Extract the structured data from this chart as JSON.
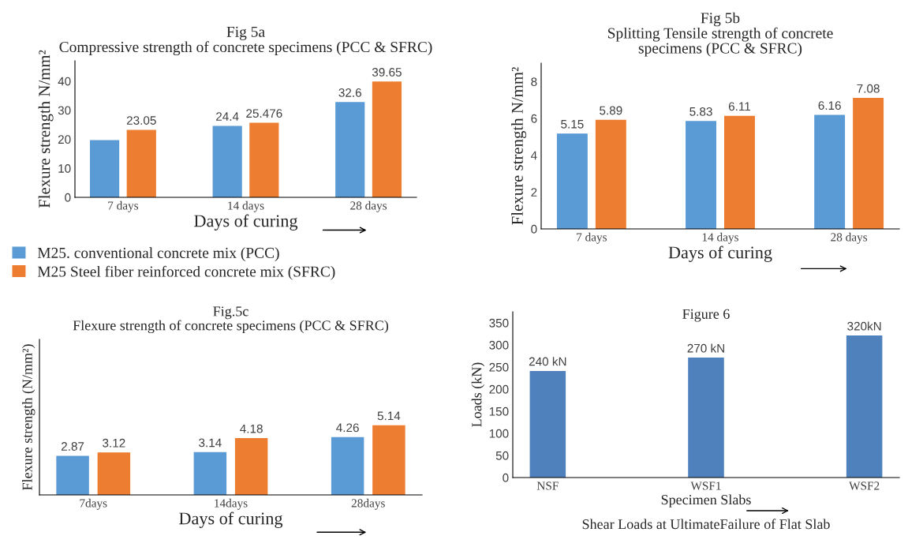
{
  "chart_data": [
    {
      "type": "bar",
      "title": "Fig 5a",
      "subtitle": "Compressive strength of concrete specimens (PCC & SFRC)",
      "xlabel": "Days of curing",
      "ylabel": "Flexure strength N/mm²",
      "categories": [
        "7 days",
        "14 days",
        "28 days"
      ],
      "series": [
        {
          "name": "M25. conventional concrete mix (PCC)",
          "color": "#5b9bd5",
          "values": [
            19.5,
            24.4,
            32.6
          ],
          "value_labels": [
            null,
            "24.4",
            "32.6"
          ]
        },
        {
          "name": "M25 Steel fiber reinforced concrete mix (SFRC)",
          "color": "#ed7d31",
          "values": [
            23.05,
            25.476,
            39.65
          ],
          "value_labels": [
            "23.05",
            "25.476",
            "39.65"
          ]
        }
      ],
      "ylim": [
        0,
        47
      ],
      "yticks": [
        0,
        10,
        20,
        30,
        40
      ],
      "legend": "bottom"
    },
    {
      "type": "bar",
      "title": "Fig 5b",
      "subtitle": "Splitting Tensile strength of concrete specimens (PCC & SFRC)",
      "xlabel": "Days of curing",
      "ylabel": "Flexure strength N/mm²",
      "categories": [
        "7 days",
        "14 days",
        "28 days"
      ],
      "series": [
        {
          "color": "#5b9bd5",
          "values": [
            5.15,
            5.83,
            6.16
          ]
        },
        {
          "color": "#ed7d31",
          "values": [
            5.89,
            6.11,
            7.08
          ]
        }
      ],
      "ylim": [
        0,
        9
      ],
      "yticks": [
        0,
        2,
        4,
        6,
        8
      ],
      "data_labels": true
    },
    {
      "type": "bar",
      "title": "Fig.5c",
      "subtitle": "Flexure strength of concrete specimens (PCC & SFRC)",
      "xlabel": "Days of curing",
      "ylabel": "Flexure strength (N/mm²)",
      "categories": [
        "7days",
        "14days",
        "28days"
      ],
      "series": [
        {
          "color": "#5b9bd5",
          "values": [
            2.87,
            3.14,
            4.26
          ]
        },
        {
          "color": "#ed7d31",
          "values": [
            3.12,
            4.18,
            5.14
          ]
        }
      ],
      "data_labels": true,
      "tick_labels": "x"
    },
    {
      "type": "bar",
      "title": "Figure 6",
      "xlabel": "Specimen Slabs",
      "ylabel": "Loads (kN)",
      "annotations": [
        "Shear Loads at UltimateFailure of Flat Slab"
      ],
      "categories": [
        "NSF",
        "WSF1",
        "WSF2"
      ],
      "series": [
        {
          "color": "#4f81bd",
          "values": [
            240,
            270,
            320
          ],
          "value_labels": [
            "240 kN",
            "270 kN",
            "320kN"
          ]
        }
      ],
      "ylim": [
        0,
        375
      ],
      "yticks": [
        0,
        50,
        100,
        150,
        200,
        250,
        300,
        350
      ]
    }
  ]
}
